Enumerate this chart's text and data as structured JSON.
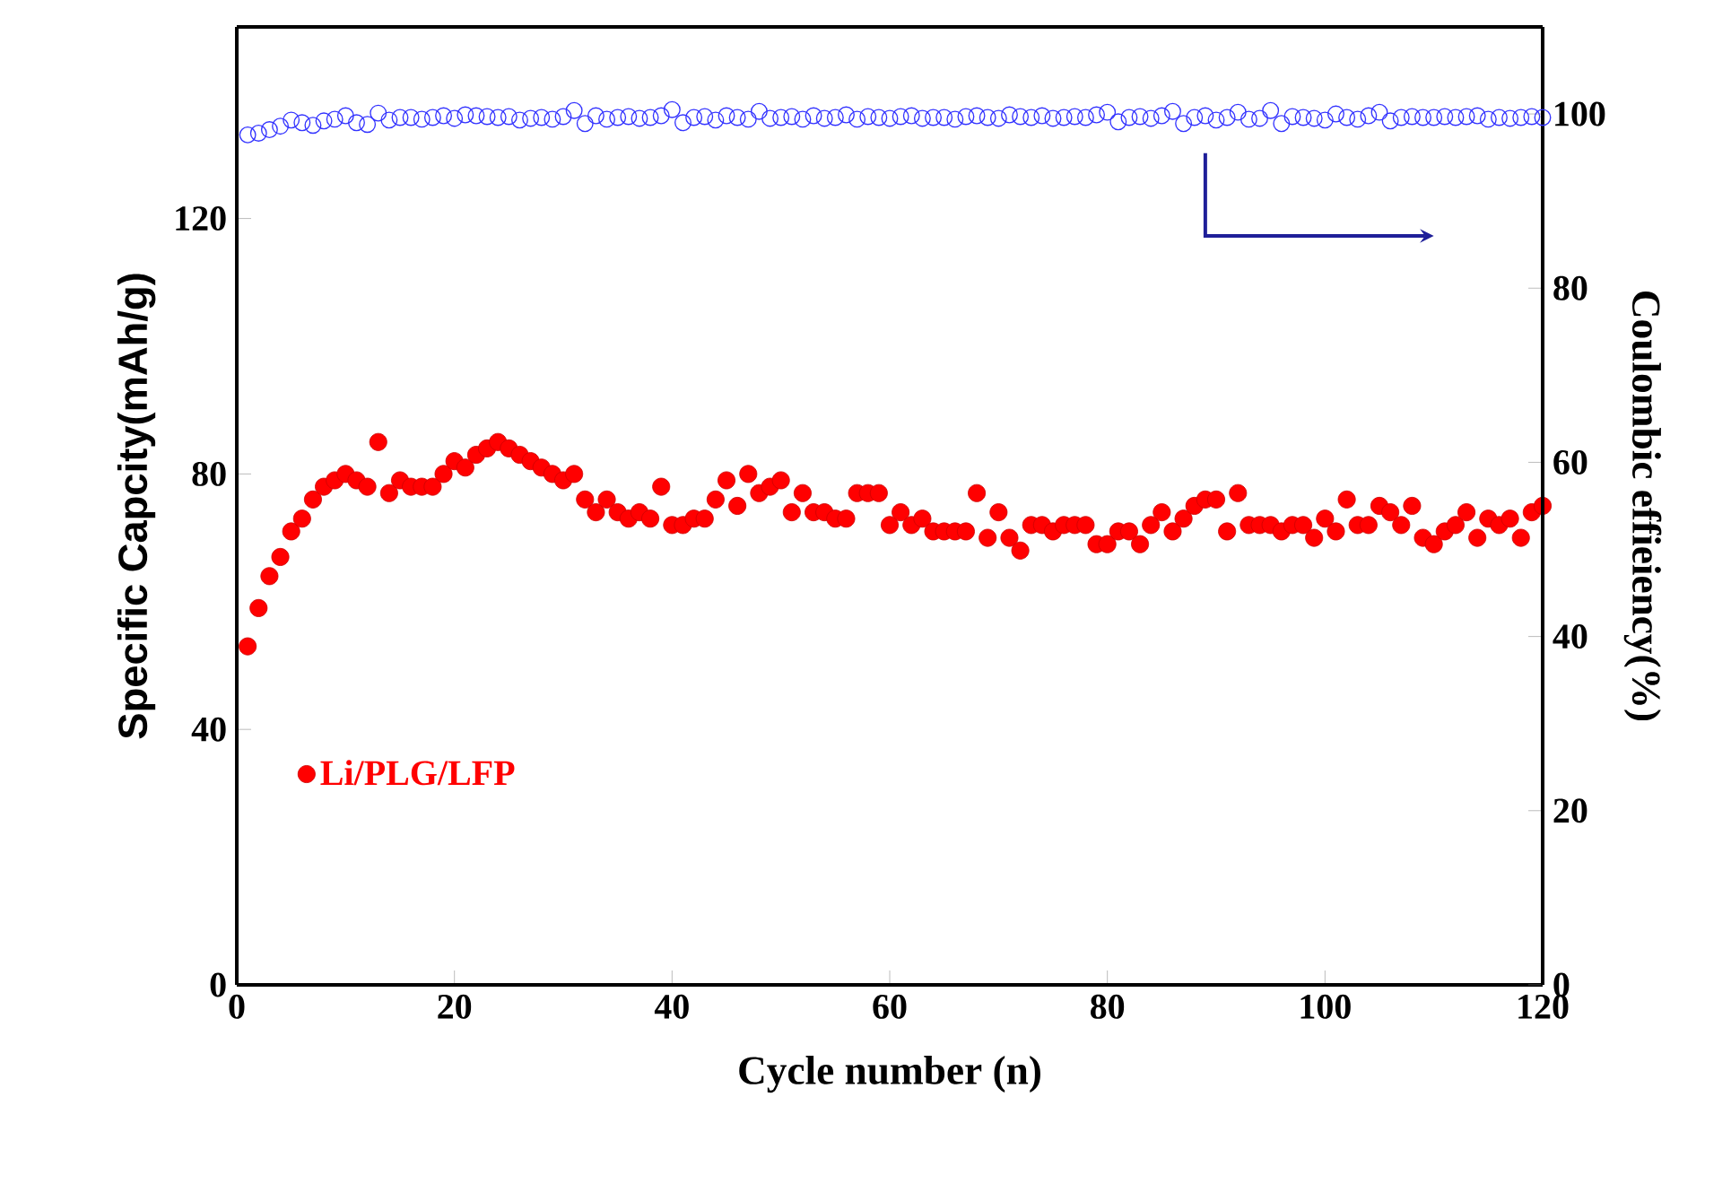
{
  "chart_data": {
    "type": "scatter",
    "xlabel": "Cycle number (n)",
    "ylabel": "Specific Capcity(mAh/g)",
    "y2label": "Coulombic effieiency(%)",
    "x": [
      1,
      2,
      3,
      4,
      5,
      6,
      7,
      8,
      9,
      10,
      11,
      12,
      13,
      14,
      15,
      16,
      17,
      18,
      19,
      20,
      21,
      22,
      23,
      24,
      25,
      26,
      27,
      28,
      29,
      30,
      31,
      32,
      33,
      34,
      35,
      36,
      37,
      38,
      39,
      40,
      41,
      42,
      43,
      44,
      45,
      46,
      47,
      48,
      49,
      50,
      51,
      52,
      53,
      54,
      55,
      56,
      57,
      58,
      59,
      60,
      61,
      62,
      63,
      64,
      65,
      66,
      67,
      68,
      69,
      70,
      71,
      72,
      73,
      74,
      75,
      76,
      77,
      78,
      79,
      80,
      81,
      82,
      83,
      84,
      85,
      86,
      87,
      88,
      89,
      90,
      91,
      92,
      93,
      94,
      95,
      96,
      97,
      98,
      99,
      100,
      101,
      102,
      103,
      104,
      105,
      106,
      107,
      108,
      109,
      110,
      111,
      112,
      113,
      114,
      115,
      116,
      117,
      118,
      119,
      120
    ],
    "series": [
      {
        "name": "Li/PLG/LFP",
        "color": "#ff0000",
        "marker": "circle",
        "values": [
          53,
          59,
          64,
          67,
          71,
          73,
          76,
          78,
          79,
          80,
          79,
          78,
          85,
          77,
          79,
          78,
          78,
          78,
          80,
          82,
          81,
          83,
          84,
          85,
          84,
          83,
          82,
          81,
          80,
          79,
          80,
          76,
          74,
          76,
          74,
          73,
          74,
          73,
          78,
          72,
          72,
          73,
          73,
          76,
          79,
          75,
          80,
          77,
          78,
          79,
          74,
          77,
          74,
          74,
          73,
          73,
          77,
          77,
          77,
          72,
          74,
          72,
          73,
          71,
          71,
          71,
          71,
          77,
          70,
          74,
          70,
          68,
          72,
          72,
          71,
          72,
          72,
          72,
          69,
          69,
          71,
          71,
          69,
          72,
          74,
          71,
          73,
          75,
          76,
          76,
          71,
          77,
          72,
          72,
          72,
          71,
          72,
          72,
          70,
          73,
          71,
          76,
          72,
          72,
          75,
          74,
          72,
          75,
          70,
          69,
          71,
          72,
          74,
          70,
          73,
          72,
          73,
          70,
          74,
          75
        ]
      },
      {
        "color": "#3333ff",
        "marker": "circle",
        "axis": "y2",
        "values": [
          97.6,
          97.8,
          98.2,
          98.6,
          99.3,
          99.0,
          98.7,
          99.2,
          99.4,
          99.8,
          99.0,
          98.8,
          100.1,
          99.3,
          99.6,
          99.6,
          99.4,
          99.6,
          99.8,
          99.5,
          99.9,
          99.8,
          99.7,
          99.6,
          99.7,
          99.3,
          99.5,
          99.6,
          99.4,
          99.7,
          100.4,
          98.9,
          99.8,
          99.4,
          99.6,
          99.7,
          99.5,
          99.6,
          99.8,
          100.5,
          99.0,
          99.6,
          99.7,
          99.3,
          99.8,
          99.6,
          99.4,
          100.3,
          99.5,
          99.6,
          99.7,
          99.4,
          99.8,
          99.5,
          99.6,
          99.9,
          99.4,
          99.7,
          99.6,
          99.5,
          99.7,
          99.8,
          99.5,
          99.6,
          99.6,
          99.4,
          99.7,
          99.8,
          99.6,
          99.5,
          99.9,
          99.7,
          99.6,
          99.8,
          99.5,
          99.6,
          99.7,
          99.6,
          99.9,
          100.2,
          99.1,
          99.6,
          99.7,
          99.5,
          99.8,
          100.3,
          98.9,
          99.6,
          99.8,
          99.3,
          99.6,
          100.2,
          99.4,
          99.5,
          100.4,
          98.9,
          99.7,
          99.6,
          99.5,
          99.3,
          100.0,
          99.6,
          99.4,
          99.8,
          100.2,
          99.2,
          99.6,
          99.7,
          99.6,
          99.6,
          99.7,
          99.6,
          99.7,
          99.8,
          99.4,
          99.6,
          99.5,
          99.6,
          99.7,
          99.6
        ]
      }
    ],
    "xlim": [
      0,
      120
    ],
    "ylim": [
      0,
      150
    ],
    "y2lim": [
      0,
      110
    ],
    "xticks": [
      0,
      20,
      40,
      60,
      80,
      100,
      120
    ],
    "yticks": [
      0,
      40,
      80,
      120
    ],
    "y2ticks": [
      0,
      20,
      40,
      60,
      80,
      100
    ],
    "legend": "left"
  }
}
